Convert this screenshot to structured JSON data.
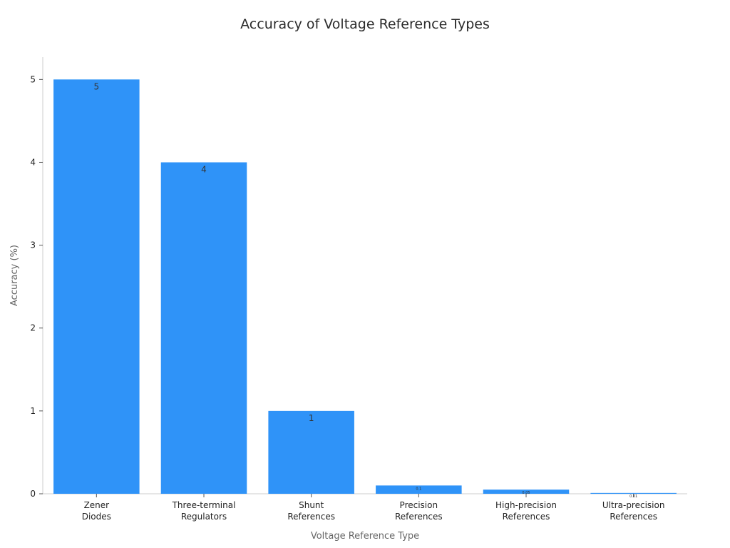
{
  "chart_data": {
    "type": "bar",
    "title": "Accuracy of Voltage Reference Types",
    "xlabel": "Voltage Reference Type",
    "ylabel": "Accuracy (%)",
    "categories": [
      [
        "Zener",
        "Diodes"
      ],
      [
        "Three-terminal",
        "Regulators"
      ],
      [
        "Shunt",
        "References"
      ],
      [
        "Precision",
        "References"
      ],
      [
        "High-precision",
        "References"
      ],
      [
        "Ultra-precision",
        "References"
      ]
    ],
    "values": [
      5,
      4,
      1,
      0.1,
      0.05,
      0.01
    ],
    "data_labels": [
      "5",
      "4",
      "1",
      "0.1",
      "0.05",
      "0.01"
    ],
    "yticks": [
      0,
      1,
      2,
      3,
      4,
      5
    ],
    "ylim": [
      0,
      5.27
    ],
    "grid": false,
    "legend": "none",
    "colors": {
      "bar": "#2f93f8",
      "bar_edge": "#86c0fb"
    }
  }
}
